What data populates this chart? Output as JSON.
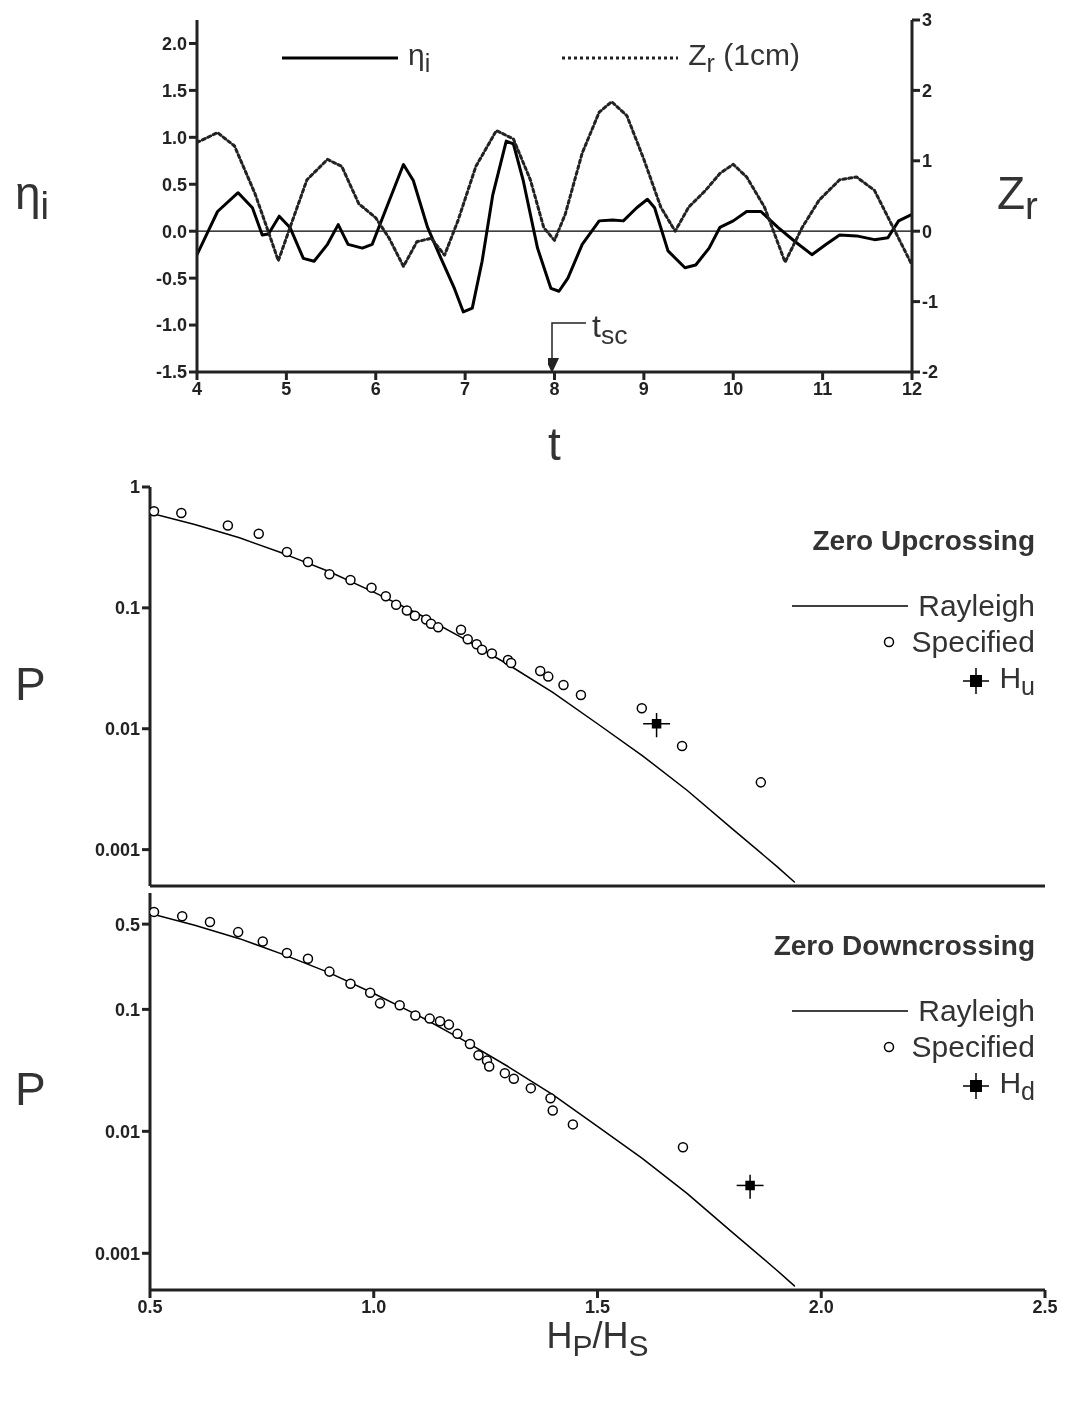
{
  "chart_data": [
    {
      "type": "line",
      "xlabel": "t",
      "ylabel": "η$_{i}$",
      "y2label": "Z$_{r}$",
      "legend": "top",
      "marker": "none",
      "xlim": [
        4,
        12
      ],
      "xticks": [
        4,
        5,
        6,
        7,
        8,
        9,
        10,
        11,
        12
      ],
      "ylim": [
        -1.5,
        2.25
      ],
      "yticks": [
        {
          "value": -1.5,
          "label": "-1.5"
        },
        {
          "value": -1,
          "label": "-1.0"
        },
        -0.5,
        {
          "value": 0,
          "label": "0.0"
        },
        0.5,
        {
          "value": 1,
          "label": "1.0"
        },
        1.5,
        {
          "value": 2,
          "label": "2.0"
        }
      ],
      "y2lim": [
        -2,
        3
      ],
      "y2ticks": [
        -2,
        -1,
        0,
        1,
        2,
        3
      ],
      "ref_lines": [
        {
          "axis": "y",
          "value": 0,
          "color": "#000000"
        }
      ],
      "annotations": [
        "t$_{sc}$"
      ],
      "series": [
        {
          "name": "η$_{i}$",
          "color": "#000000",
          "line_style": "solid",
          "x": [
            4,
            4.23,
            4.46,
            4.62,
            4.73,
            4.8,
            4.92,
            5.04,
            5.19,
            5.31,
            5.46,
            5.58,
            5.69,
            5.85,
            5.96,
            6.12,
            6.31,
            6.42,
            6.58,
            6.73,
            6.88,
            6.98,
            7.08,
            7.19,
            7.31,
            7.46,
            7.54,
            7.65,
            7.81,
            7.96,
            8.05,
            8.15,
            8.31,
            8.5,
            8.65,
            8.77,
            8.92,
            9.04,
            9.12,
            9.27,
            9.46,
            9.58,
            9.73,
            9.85,
            10,
            10.15,
            10.31,
            10.5,
            10.69,
            10.88,
            11.04,
            11.19,
            11.38,
            11.58,
            11.73,
            11.85,
            12
          ],
          "values": [
            -0.25,
            0.21,
            0.41,
            0.25,
            -0.04,
            -0.03,
            0.16,
            0.04,
            -0.29,
            -0.32,
            -0.14,
            0.07,
            -0.14,
            -0.18,
            -0.14,
            0.25,
            0.71,
            0.54,
            0.04,
            -0.29,
            -0.61,
            -0.86,
            -0.82,
            -0.32,
            0.39,
            0.96,
            0.93,
            0.54,
            -0.18,
            -0.61,
            -0.64,
            -0.5,
            -0.14,
            0.11,
            0.12,
            0.11,
            0.25,
            0.34,
            0.25,
            -0.21,
            -0.39,
            -0.36,
            -0.18,
            0.04,
            0.11,
            0.21,
            0.21,
            0.04,
            -0.11,
            -0.25,
            -0.14,
            -0.04,
            -0.05,
            -0.09,
            -0.07,
            0.11,
            0.18
          ]
        },
        {
          "name": "Z$_{r}$ (1cm)",
          "axis": "y2",
          "color": "#222222",
          "line_style": "dotted",
          "x": [
            4,
            4.23,
            4.42,
            4.65,
            4.81,
            4.91,
            5.04,
            5.23,
            5.46,
            5.62,
            5.81,
            6,
            6.15,
            6.31,
            6.46,
            6.62,
            6.77,
            6.92,
            7.12,
            7.35,
            7.54,
            7.73,
            7.88,
            8,
            8.12,
            8.31,
            8.5,
            8.64,
            8.81,
            9,
            9.19,
            9.35,
            9.5,
            9.69,
            9.85,
            10,
            10.15,
            10.35,
            10.58,
            10.77,
            10.96,
            11.19,
            11.38,
            11.58,
            11.81,
            12
          ],
          "values": [
            1.26,
            1.4,
            1.21,
            0.53,
            -0.05,
            -0.42,
            0.05,
            0.73,
            1.02,
            0.92,
            0.39,
            0.19,
            -0.1,
            -0.5,
            -0.15,
            -0.1,
            -0.34,
            0.15,
            0.92,
            1.43,
            1.31,
            0.73,
            0.05,
            -0.13,
            0.24,
            1.11,
            1.69,
            1.84,
            1.64,
            1.02,
            0.34,
            0,
            0.34,
            0.58,
            0.82,
            0.95,
            0.77,
            0.34,
            -0.44,
            0.05,
            0.44,
            0.73,
            0.77,
            0.58,
            0,
            -0.48
          ]
        }
      ]
    },
    {
      "type": "scatter",
      "ylabel": "P",
      "legend_title": "Zero Upcrossing",
      "legend": "top right",
      "log": "y",
      "tick_labels": "y",
      "xlim": [
        0.5,
        2.5
      ],
      "xticks": [
        0.5,
        1,
        1.5,
        2,
        2.5
      ],
      "ylim": [
        0.0005,
        1
      ],
      "yticks": [
        0.001,
        0.01,
        0.1,
        1
      ],
      "series": [
        {
          "name": "Rayleigh",
          "type": "line",
          "color": "#000000",
          "line_style": "solid",
          "marker": "none",
          "x": [
            0.5,
            0.6,
            0.7,
            0.8,
            0.9,
            1.0,
            1.1,
            1.2,
            1.3,
            1.4,
            1.5,
            1.6,
            1.7,
            1.8,
            1.9,
            1.94
          ],
          "values": [
            0.61,
            0.49,
            0.38,
            0.28,
            0.2,
            0.135,
            0.089,
            0.056,
            0.034,
            0.02,
            0.011,
            0.006,
            0.0031,
            0.0015,
            0.00073,
            0.00054
          ]
        },
        {
          "name": "Specified",
          "color": "#000000",
          "marker": "circle",
          "x": [
            0.509,
            0.57,
            0.674,
            0.743,
            0.806,
            0.853,
            0.901,
            0.948,
            0.995,
            1.027,
            1.05,
            1.074,
            1.092,
            1.117,
            1.128,
            1.144,
            1.195,
            1.21,
            1.23,
            1.242,
            1.264,
            1.3,
            1.307,
            1.372,
            1.39,
            1.424,
            1.463,
            1.599,
            1.689,
            1.865
          ],
          "values": [
            0.63,
            0.61,
            0.48,
            0.41,
            0.29,
            0.24,
            0.19,
            0.17,
            0.147,
            0.125,
            0.106,
            0.095,
            0.086,
            0.08,
            0.074,
            0.069,
            0.066,
            0.055,
            0.05,
            0.045,
            0.042,
            0.037,
            0.035,
            0.03,
            0.027,
            0.023,
            0.019,
            0.0148,
            0.0072,
            0.0036
          ]
        },
        {
          "name": "H$_{u}$",
          "color": "#000000",
          "marker": "square",
          "x": [
            1.632
          ],
          "values": [
            0.011
          ],
          "errors": [
            0.0025
          ],
          "xerrors": [
            0.03
          ]
        }
      ]
    },
    {
      "type": "scatter",
      "ylabel": "P",
      "xlabel": "H$_{P}$/H$_{S}$",
      "legend_title": "Zero Downcrossing",
      "legend": "top right",
      "log": "y",
      "xlim": [
        0.5,
        2.5
      ],
      "xticks": [
        0.5,
        {
          "value": 1,
          "label": "1.0"
        },
        1.5,
        {
          "value": 2,
          "label": "2.0"
        },
        2.5
      ],
      "ylim": [
        0.0005,
        0.9
      ],
      "yticks": [
        0.001,
        0.01,
        0.1,
        0.5
      ],
      "series": [
        {
          "name": "Rayleigh",
          "type": "line",
          "color": "#000000",
          "line_style": "solid",
          "marker": "none",
          "x": [
            0.5,
            0.6,
            0.7,
            0.8,
            0.9,
            1.0,
            1.1,
            1.2,
            1.3,
            1.4,
            1.5,
            1.6,
            1.7,
            1.8,
            1.9,
            1.94
          ],
          "values": [
            0.61,
            0.49,
            0.38,
            0.28,
            0.2,
            0.135,
            0.089,
            0.056,
            0.034,
            0.02,
            0.011,
            0.006,
            0.0031,
            0.0015,
            0.00073,
            0.00054
          ]
        },
        {
          "name": "Specified",
          "color": "#000000",
          "marker": "circle",
          "x": [
            0.509,
            0.572,
            0.634,
            0.697,
            0.752,
            0.806,
            0.853,
            0.901,
            0.948,
            0.992,
            1.014,
            1.058,
            1.093,
            1.125,
            1.148,
            1.168,
            1.187,
            1.215,
            1.234,
            1.253,
            1.258,
            1.293,
            1.313,
            1.351,
            1.395,
            1.4,
            1.445,
            1.691
          ],
          "values": [
            0.63,
            0.58,
            0.52,
            0.43,
            0.36,
            0.29,
            0.26,
            0.204,
            0.162,
            0.137,
            0.112,
            0.108,
            0.089,
            0.084,
            0.08,
            0.075,
            0.063,
            0.052,
            0.042,
            0.038,
            0.034,
            0.03,
            0.027,
            0.0226,
            0.0187,
            0.0148,
            0.0114,
            0.0074
          ]
        },
        {
          "name": "H$_{d}$",
          "color": "#000000",
          "marker": "square",
          "x": [
            1.841
          ],
          "values": [
            0.0036
          ],
          "errors": [
            0.0008
          ],
          "xerrors": [
            0.03
          ]
        }
      ]
    }
  ]
}
